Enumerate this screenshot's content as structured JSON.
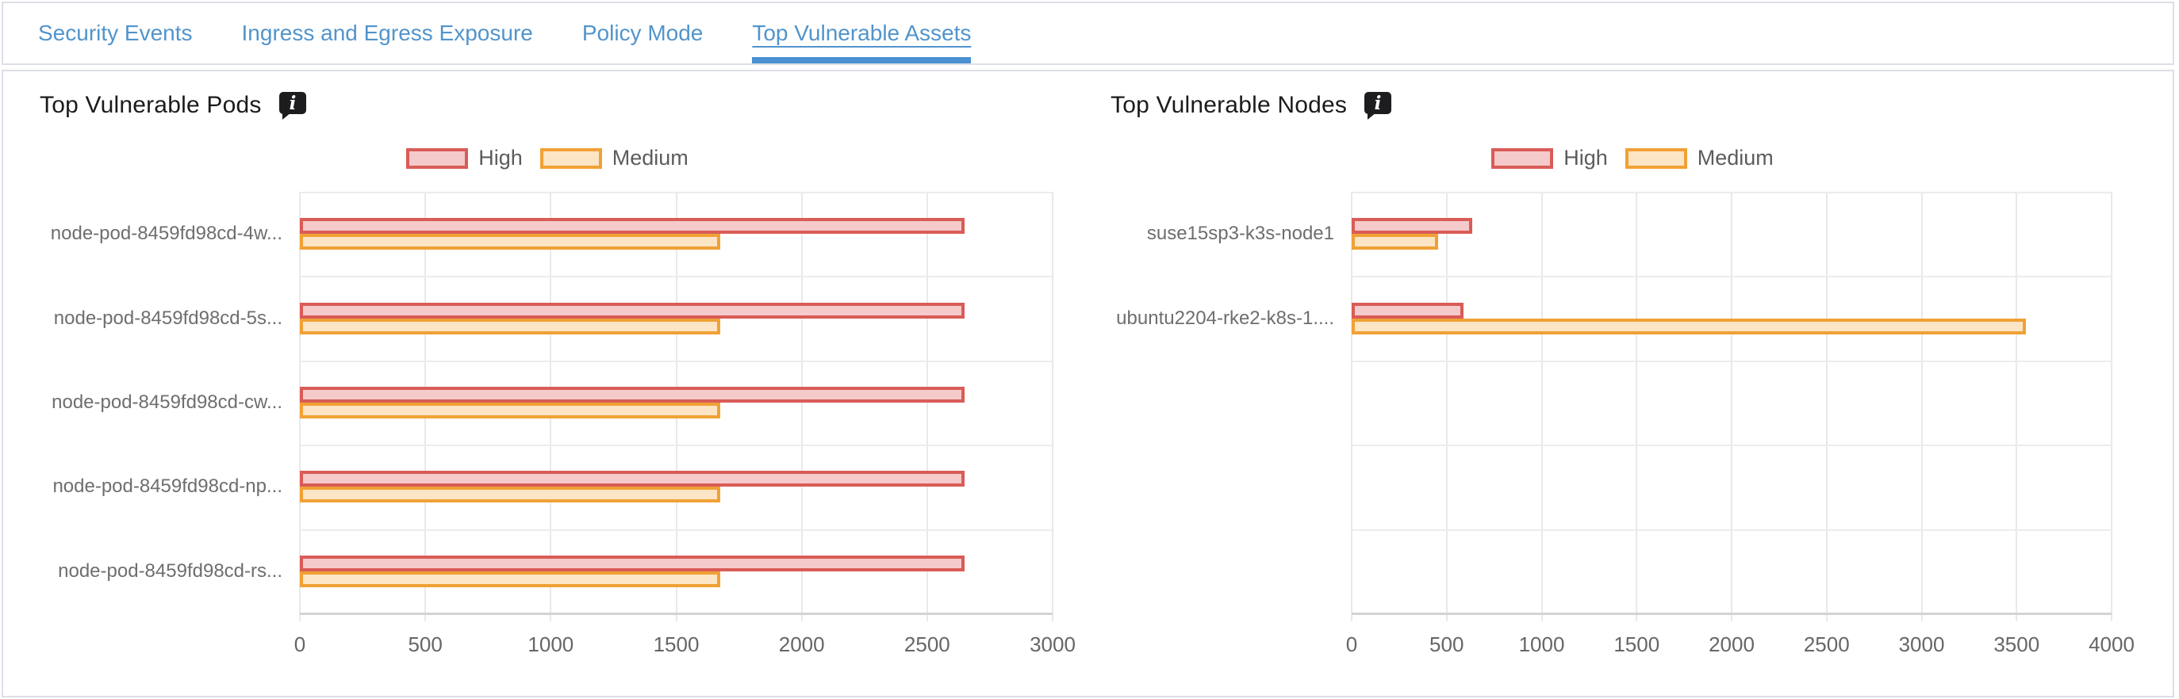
{
  "tabs": {
    "items": [
      {
        "label": "Security Events"
      },
      {
        "label": "Ingress and Egress Exposure"
      },
      {
        "label": "Policy Mode"
      },
      {
        "label": "Top Vulnerable Assets"
      }
    ],
    "active_index": 3
  },
  "colors": {
    "tab_blue": "#5294cc",
    "active_tab_underline": "#4a90d2",
    "panel_border": "#dcdfe6",
    "high_border": "#d95c57",
    "high_fill": "#f5caca",
    "medium_border": "#f0a135",
    "medium_fill": "#fbe5c5",
    "gridline": "#e9e9e9",
    "axis_text": "#666666"
  },
  "chart_data": [
    {
      "type": "bar",
      "orientation": "horizontal",
      "title": "Top Vulnerable Pods",
      "has_info_icon": true,
      "legend_position": "top",
      "grid": true,
      "categories": [
        "node-pod-8459fd98cd-4w...",
        "node-pod-8459fd98cd-5s...",
        "node-pod-8459fd98cd-cw...",
        "node-pod-8459fd98cd-np...",
        "node-pod-8459fd98cd-rs..."
      ],
      "series": [
        {
          "name": "High",
          "border": "#d95c57",
          "fill": "#f5caca",
          "values": [
            2650,
            2650,
            2650,
            2650,
            2650
          ]
        },
        {
          "name": "Medium",
          "border": "#f0a135",
          "fill": "#fbe5c5",
          "values": [
            1675,
            1675,
            1675,
            1675,
            1675
          ]
        }
      ],
      "xlim": [
        0,
        3000
      ],
      "xticks": [
        0,
        500,
        1000,
        1500,
        2000,
        2500,
        3000
      ]
    },
    {
      "type": "bar",
      "orientation": "horizontal",
      "title": "Top Vulnerable Nodes",
      "has_info_icon": true,
      "legend_position": "top",
      "grid": true,
      "categories": [
        "suse15sp3-k3s-node1",
        "ubuntu2204-rke2-k8s-1...."
      ],
      "series": [
        {
          "name": "High",
          "border": "#d95c57",
          "fill": "#f5caca",
          "values": [
            635,
            590
          ]
        },
        {
          "name": "Medium",
          "border": "#f0a135",
          "fill": "#fbe5c5",
          "values": [
            455,
            3550
          ]
        }
      ],
      "xlim": [
        0,
        4000
      ],
      "xticks": [
        0,
        500,
        1000,
        1500,
        2000,
        2500,
        3000,
        3500,
        4000
      ]
    }
  ]
}
